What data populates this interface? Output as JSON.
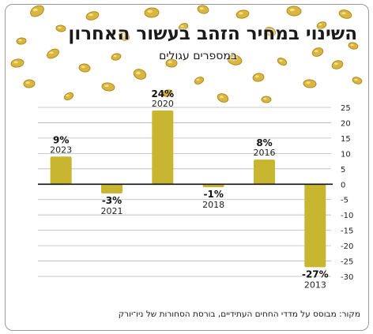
{
  "header": {
    "title": "השינוי במחיר הזהב בעשור האחרון",
    "subtitle": "במספרים עגולים"
  },
  "footer": {
    "source": "מקור: מבוסס על מדדי החחים העתידיים, בורסת הסחורות של ניו־יורק"
  },
  "colors": {
    "bar": "#c8b630",
    "grid": "#b8b8b8",
    "zero_line": "#111111",
    "coin": "#d8b640"
  },
  "decoration": "gold-coins",
  "chart_data": {
    "type": "bar",
    "categories": [
      "2023",
      "2021",
      "2020",
      "2018",
      "2016",
      "2013"
    ],
    "values": [
      9,
      -3,
      24,
      -1,
      8,
      -27
    ],
    "value_labels": [
      "9%",
      "-3%",
      "24%",
      "-1%",
      "8%",
      "-27%"
    ],
    "yticks": [
      25,
      20,
      15,
      10,
      5,
      0,
      -5,
      -10,
      -15,
      -20,
      -25,
      -30
    ],
    "ylim": [
      -30,
      25
    ],
    "y_axis_side": "right",
    "grid": true,
    "title": "השינוי במחיר הזהב בעשור האחרון",
    "subtitle": "במספרים עגולים"
  }
}
